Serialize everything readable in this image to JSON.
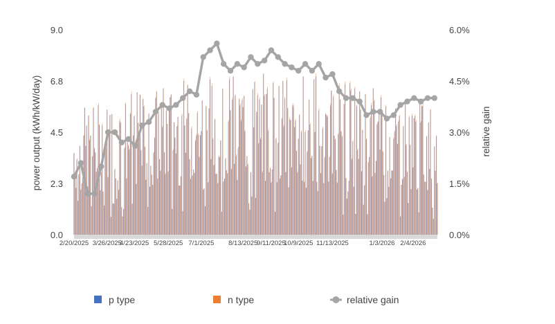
{
  "chart_data": {
    "type": "bar",
    "title": "",
    "ylabel_left": "power output  (kWh/kW/day)",
    "ylabel_right": "relative gain",
    "yticks_left": [
      "0.0",
      "2.3",
      "4.5",
      "6.8",
      "9.0"
    ],
    "yticks_right": [
      "0.0%",
      "1.5%",
      "3.0%",
      "4.5%",
      "6.0%"
    ],
    "ylim_left": [
      0,
      9
    ],
    "ylim_right": [
      0,
      6
    ],
    "x_start": "2/20/2025",
    "x_end": "3/1/2026",
    "x_tick_labels": [
      "2/20/2025",
      "3/26/2025",
      "4/23/2025",
      "5/28/2025",
      "7/1/2025",
      "8/13/2025",
      "9/11/2025",
      "10/9/2025",
      "11/13/2025",
      "1/3/2026",
      "2/4/2026"
    ],
    "legend": {
      "position": "bottom"
    },
    "colors": {
      "p_type": "#4472c4",
      "n_type": "#ed7d31",
      "relative_gain": "#a5a5a5"
    },
    "series": [
      {
        "name": "p type",
        "kind": "bar",
        "axis": "left",
        "typical_range": [
          0.4,
          7.5
        ]
      },
      {
        "name": "n type",
        "kind": "bar",
        "axis": "left",
        "typical_range": [
          0.4,
          7.6
        ]
      },
      {
        "name": "relative gain",
        "kind": "line",
        "axis": "right",
        "x": [
          "2/20/2025",
          "2/27/2025",
          "3/6/2025",
          "3/13/2025",
          "3/20/2025",
          "3/27/2025",
          "4/3/2025",
          "4/10/2025",
          "4/17/2025",
          "4/24/2025",
          "5/1/2025",
          "5/8/2025",
          "5/15/2025",
          "5/22/2025",
          "5/29/2025",
          "6/5/2025",
          "6/12/2025",
          "6/19/2025",
          "6/26/2025",
          "7/3/2025",
          "7/10/2025",
          "7/17/2025",
          "7/24/2025",
          "7/31/2025",
          "8/7/2025",
          "8/14/2025",
          "8/21/2025",
          "8/28/2025",
          "9/4/2025",
          "9/11/2025",
          "9/18/2025",
          "9/25/2025",
          "10/2/2025",
          "10/9/2025",
          "10/16/2025",
          "10/23/2025",
          "10/30/2025",
          "11/6/2025",
          "11/13/2025",
          "11/20/2025",
          "11/27/2025",
          "12/4/2025",
          "12/11/2025",
          "12/18/2025",
          "12/25/2025",
          "1/1/2026",
          "1/8/2026",
          "1/15/2026",
          "1/22/2026",
          "1/29/2026",
          "2/5/2026",
          "2/12/2026",
          "2/19/2026",
          "2/26/2026"
        ],
        "values": [
          1.7,
          2.1,
          1.2,
          1.2,
          2.0,
          3.0,
          3.0,
          2.7,
          2.8,
          2.6,
          3.2,
          3.3,
          3.6,
          3.8,
          3.7,
          3.8,
          4.0,
          4.2,
          4.1,
          5.2,
          5.4,
          5.6,
          5.0,
          4.8,
          5.0,
          4.9,
          5.2,
          5.0,
          5.1,
          5.4,
          5.2,
          5.0,
          4.9,
          4.8,
          5.0,
          4.8,
          5.0,
          4.6,
          4.7,
          4.2,
          4.0,
          4.0,
          3.9,
          3.5,
          3.6,
          3.6,
          3.4,
          3.5,
          3.8,
          3.9,
          4.0,
          3.9,
          4.0,
          4.0
        ]
      }
    ]
  },
  "legend_items": {
    "p_type_label": "p type",
    "n_type_label": "n type",
    "relative_gain_label": "relative gain"
  }
}
